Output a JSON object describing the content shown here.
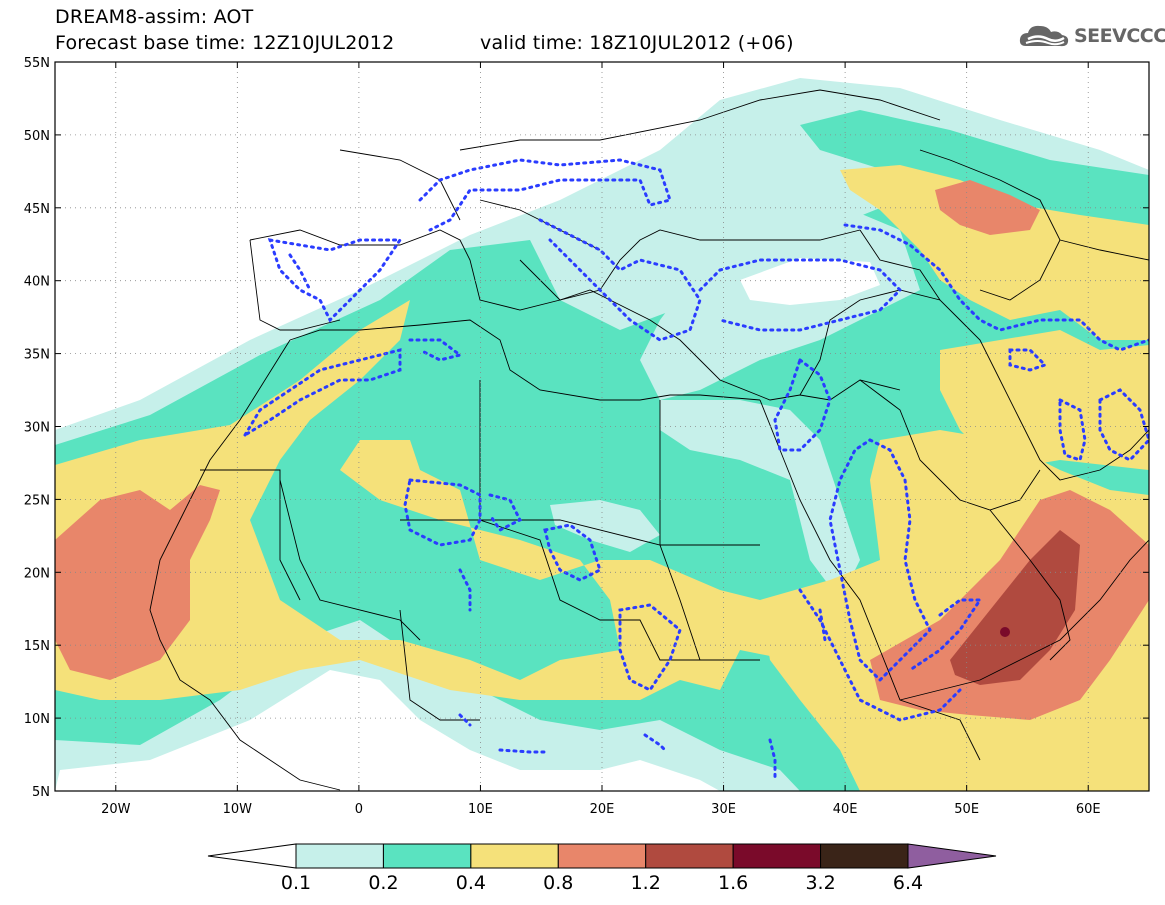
{
  "header": {
    "line1": "DREAM8-assim: AOT",
    "line2": "Forecast base time: 12Z10JUL2012",
    "line2b": "valid time: 18Z10JUL2012 (+06)",
    "logo_text": "SEEVCCC"
  },
  "map": {
    "lat_labels": [
      "55N",
      "50N",
      "45N",
      "40N",
      "35N",
      "30N",
      "25N",
      "20N",
      "15N",
      "10N",
      "5N"
    ],
    "lon_labels": [
      "20W",
      "10W",
      "0",
      "10E",
      "20E",
      "30E",
      "40E",
      "50E",
      "60E"
    ],
    "lat_range": [
      5,
      55
    ],
    "lon_range": [
      -25,
      65
    ],
    "grid": "dotted"
  },
  "legend": {
    "boundaries": [
      "0.1",
      "0.2",
      "0.4",
      "0.8",
      "1.2",
      "1.6",
      "3.2",
      "6.4"
    ],
    "colors": [
      "#ffffff",
      "#c6f0ea",
      "#5ae3c0",
      "#f5e17a",
      "#e8866a",
      "#b04a3f",
      "#7a0a2a",
      "#3a2418",
      "#8f5e9f"
    ]
  }
}
